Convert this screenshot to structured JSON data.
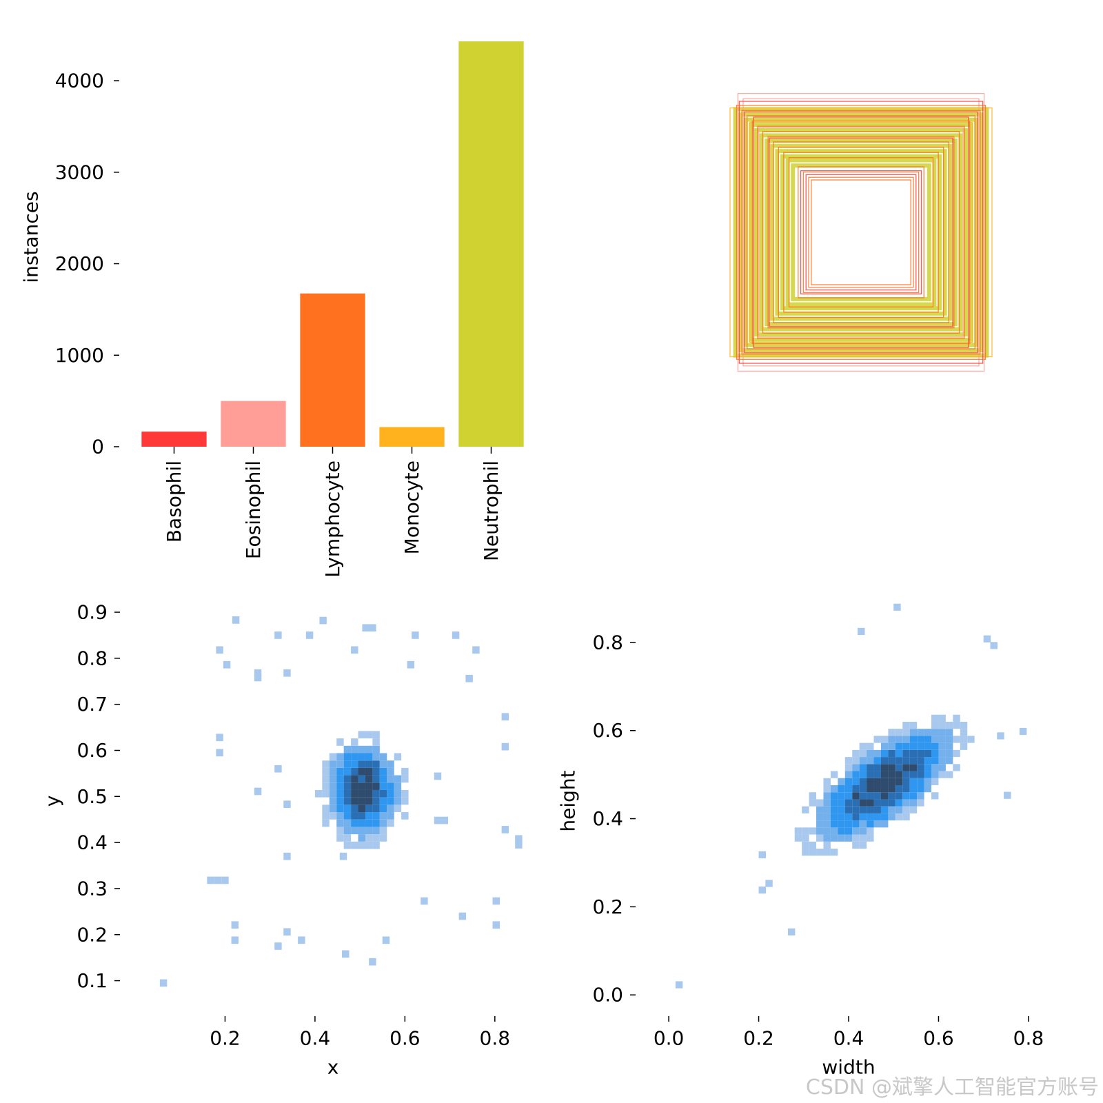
{
  "colors": {
    "Basophil": "#ff3838",
    "Eosinophil": "#ff9d97",
    "Lymphocyte": "#ff701f",
    "Monocyte": "#ffb21d",
    "Neutrophil": "#cfd231",
    "hist_light": "#a8c8ee",
    "hist_mid": "#2f97f0",
    "hist_dark": "#2f4c6e"
  },
  "chart_data": [
    {
      "type": "bar",
      "categories": [
        "Basophil",
        "Eosinophil",
        "Lymphocyte",
        "Monocyte",
        "Neutrophil"
      ],
      "values": [
        165,
        500,
        1675,
        215,
        4430
      ],
      "xlabel": "",
      "ylabel": "instances",
      "ylim": [
        0,
        4430
      ],
      "yticks": [
        0,
        1000,
        2000,
        3000,
        4000
      ],
      "ytick_labels": [
        "0",
        "1000",
        "2000",
        "3000",
        "4000"
      ],
      "grid": false
    },
    {
      "type": "boxes",
      "description_classes": [
        "Basophil",
        "Eosinophil",
        "Lymphocyte",
        "Monocyte",
        "Neutrophil"
      ],
      "boxes": [
        {
          "class": "Neutrophil",
          "w": 0.96,
          "h": 0.94
        },
        {
          "class": "Neutrophil",
          "w": 0.92,
          "h": 0.9
        },
        {
          "class": "Neutrophil",
          "w": 0.88,
          "h": 0.86
        },
        {
          "class": "Neutrophil",
          "w": 0.84,
          "h": 0.82
        },
        {
          "class": "Neutrophil",
          "w": 0.8,
          "h": 0.78
        },
        {
          "class": "Neutrophil",
          "w": 0.76,
          "h": 0.74
        },
        {
          "class": "Neutrophil",
          "w": 0.72,
          "h": 0.7
        },
        {
          "class": "Neutrophil",
          "w": 0.68,
          "h": 0.66
        },
        {
          "class": "Neutrophil",
          "w": 0.64,
          "h": 0.62
        },
        {
          "class": "Neutrophil",
          "w": 0.6,
          "h": 0.58
        },
        {
          "class": "Neutrophil",
          "w": 0.56,
          "h": 0.55
        },
        {
          "class": "Neutrophil",
          "w": 0.52,
          "h": 0.51
        },
        {
          "class": "Monocyte",
          "w": 1.0,
          "h": 0.95
        },
        {
          "class": "Monocyte",
          "w": 0.85,
          "h": 0.84
        },
        {
          "class": "Eosinophil",
          "w": 0.94,
          "h": 1.06
        },
        {
          "class": "Eosinophil",
          "w": 0.9,
          "h": 1.02
        },
        {
          "class": "Eosinophil",
          "w": 0.78,
          "h": 0.8
        },
        {
          "class": "Basophil",
          "w": 0.93,
          "h": 1.0
        },
        {
          "class": "Basophil",
          "w": 0.89,
          "h": 0.92
        },
        {
          "class": "Basophil",
          "w": 0.82,
          "h": 0.88
        },
        {
          "class": "Basophil",
          "w": 0.7,
          "h": 0.72
        },
        {
          "class": "Lymphocyte",
          "w": 0.95,
          "h": 0.97
        },
        {
          "class": "Lymphocyte",
          "w": 0.91,
          "h": 0.93
        },
        {
          "class": "Lymphocyte",
          "w": 0.87,
          "h": 0.89
        },
        {
          "class": "Lymphocyte",
          "w": 0.83,
          "h": 0.85
        },
        {
          "class": "Lymphocyte",
          "w": 0.79,
          "h": 0.81
        },
        {
          "class": "Lymphocyte",
          "w": 0.75,
          "h": 0.77
        },
        {
          "class": "Lymphocyte",
          "w": 0.71,
          "h": 0.73
        },
        {
          "class": "Lymphocyte",
          "w": 0.67,
          "h": 0.69
        },
        {
          "class": "Lymphocyte",
          "w": 0.63,
          "h": 0.65
        },
        {
          "class": "Lymphocyte",
          "w": 0.59,
          "h": 0.61
        },
        {
          "class": "Lymphocyte",
          "w": 0.55,
          "h": 0.57
        },
        {
          "class": "Lymphocyte",
          "w": 0.48,
          "h": 0.5
        },
        {
          "class": "Lymphocyte",
          "w": 0.44,
          "h": 0.46
        },
        {
          "class": "Lymphocyte",
          "w": 0.4,
          "h": 0.42
        },
        {
          "class": "Lymphocyte",
          "w": 0.38,
          "h": 0.4
        },
        {
          "class": "Basophil",
          "w": 0.42,
          "h": 0.44
        },
        {
          "class": "Basophil",
          "w": 0.46,
          "h": 0.47
        }
      ]
    },
    {
      "type": "heatmap",
      "xlabel": "x",
      "ylabel": "y",
      "xlim": [
        0.0,
        0.88
      ],
      "ylim": [
        0.05,
        0.93
      ],
      "xticks": [
        0.2,
        0.4,
        0.6,
        0.8
      ],
      "xtick_labels": [
        "0.2",
        "0.4",
        "0.6",
        "0.8"
      ],
      "yticks": [
        0.1,
        0.2,
        0.3,
        0.4,
        0.5,
        0.6,
        0.7,
        0.8,
        0.9
      ],
      "ytick_labels": [
        "0.1",
        "0.2",
        "0.3",
        "0.4",
        "0.5",
        "0.6",
        "0.7",
        "0.8",
        "0.9"
      ],
      "bin": 0.016,
      "core": {
        "cx": 0.5,
        "cy": 0.505,
        "rx": 0.095,
        "ry": 0.12
      },
      "outliers": [
        [
          0.055,
          0.087
        ],
        [
          0.16,
          0.31
        ],
        [
          0.176,
          0.31
        ],
        [
          0.192,
          0.31
        ],
        [
          0.214,
          0.213
        ],
        [
          0.214,
          0.18
        ],
        [
          0.18,
          0.587
        ],
        [
          0.18,
          0.62
        ],
        [
          0.18,
          0.81
        ],
        [
          0.196,
          0.778
        ],
        [
          0.216,
          0.875
        ],
        [
          0.265,
          0.76
        ],
        [
          0.265,
          0.75
        ],
        [
          0.265,
          0.503
        ],
        [
          0.31,
          0.842
        ],
        [
          0.31,
          0.552
        ],
        [
          0.31,
          0.167
        ],
        [
          0.33,
          0.76
        ],
        [
          0.33,
          0.475
        ],
        [
          0.33,
          0.362
        ],
        [
          0.33,
          0.198
        ],
        [
          0.362,
          0.18
        ],
        [
          0.38,
          0.842
        ],
        [
          0.41,
          0.874
        ],
        [
          0.48,
          0.81
        ],
        [
          0.505,
          0.858
        ],
        [
          0.52,
          0.858
        ],
        [
          0.52,
          0.133
        ],
        [
          0.46,
          0.15
        ],
        [
          0.455,
          0.362
        ],
        [
          0.55,
          0.18
        ],
        [
          0.605,
          0.778
        ],
        [
          0.615,
          0.842
        ],
        [
          0.635,
          0.265
        ],
        [
          0.665,
          0.536
        ],
        [
          0.665,
          0.44
        ],
        [
          0.68,
          0.44
        ],
        [
          0.705,
          0.842
        ],
        [
          0.72,
          0.232
        ],
        [
          0.735,
          0.748
        ],
        [
          0.75,
          0.81
        ],
        [
          0.795,
          0.265
        ],
        [
          0.795,
          0.213
        ],
        [
          0.815,
          0.665
        ],
        [
          0.815,
          0.6
        ],
        [
          0.815,
          0.42
        ],
        [
          0.845,
          0.4
        ],
        [
          0.845,
          0.387
        ]
      ]
    },
    {
      "type": "heatmap",
      "xlabel": "width",
      "ylabel": "height",
      "xlim": [
        -0.04,
        0.84
      ],
      "ylim": [
        -0.02,
        0.9
      ],
      "xticks": [
        0.0,
        0.2,
        0.4,
        0.6,
        0.8
      ],
      "xtick_labels": [
        "0.0",
        "0.2",
        "0.4",
        "0.6",
        "0.8"
      ],
      "yticks": [
        0.0,
        0.2,
        0.4,
        0.6,
        0.8
      ],
      "ytick_labels": [
        "0.0",
        "0.2",
        "0.4",
        "0.6",
        "0.8"
      ],
      "bin": 0.016,
      "core": {
        "cx": 0.47,
        "cy": 0.47,
        "rx": 0.22,
        "ry": 0.09,
        "angle_deg": 38
      },
      "outliers": [
        [
          0.015,
          0.015
        ],
        [
          0.265,
          0.135
        ],
        [
          0.5,
          0.872
        ],
        [
          0.42,
          0.817
        ],
        [
          0.7,
          0.8
        ],
        [
          0.715,
          0.785
        ],
        [
          0.73,
          0.58
        ],
        [
          0.78,
          0.59
        ],
        [
          0.745,
          0.445
        ],
        [
          0.215,
          0.245
        ],
        [
          0.2,
          0.23
        ],
        [
          0.2,
          0.31
        ]
      ]
    }
  ],
  "watermark": "CSDN @斌擎人工智能官方账号"
}
